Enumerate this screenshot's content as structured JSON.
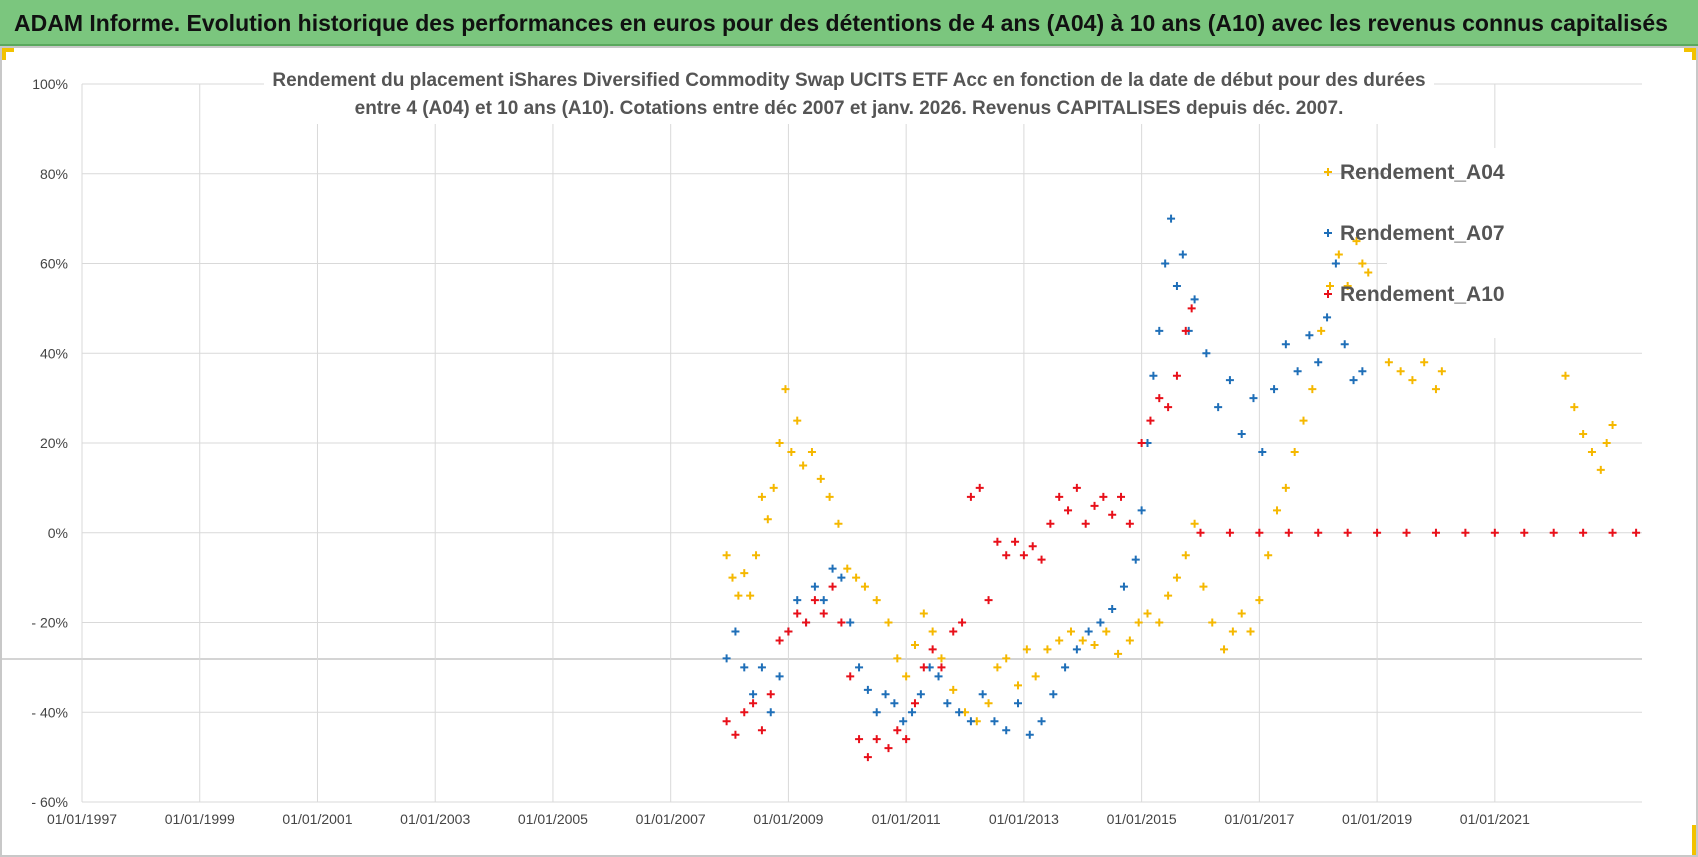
{
  "header": {
    "banner_text": "ADAM Informe. Evolution historique des performances en euros pour des détentions de 4 ans (A04) à 10 ans (A10) avec les revenus connus capitalisés"
  },
  "colors": {
    "banner_bg": "#7bc67e",
    "A04": "#f5b800",
    "A07": "#1f6fb8",
    "A10": "#e8101a",
    "grid": "#d9d9d9"
  },
  "chart_data": {
    "type": "scatter",
    "title_line1": "Rendement du placement iShares Diversified Commodity Swap UCITS ETF Acc en fonction de la date de début pour des durées",
    "title_line2": "entre 4 (A04) et 10 ans (A10). Cotations entre déc 2007 et janv. 2026. Revenus CAPITALISES depuis déc. 2007.",
    "xlabel": "",
    "ylabel": "",
    "x_start_year": 1997,
    "x_end_year": 2023.5,
    "x_ticks": [
      "01/01/1997",
      "01/01/1999",
      "01/01/2001",
      "01/01/2003",
      "01/01/2005",
      "01/01/2007",
      "01/01/2009",
      "01/01/2011",
      "01/01/2013",
      "01/01/2015",
      "01/01/2017",
      "01/01/2019",
      "01/01/2021"
    ],
    "y_ticks": [
      100,
      80,
      60,
      40,
      20,
      0,
      -20,
      -40,
      -60
    ],
    "y_tick_labels": [
      "100%",
      "80%",
      "60%",
      "40%",
      "20%",
      "0%",
      "- 20%",
      "- 40%",
      "- 60%"
    ],
    "ylim": [
      -60,
      100
    ],
    "legend_position": "top-right",
    "marker": "+",
    "series": [
      {
        "name": "Rendement_A04",
        "points": [
          [
            2007.95,
            -5
          ],
          [
            2008.05,
            -10
          ],
          [
            2008.15,
            -14
          ],
          [
            2008.25,
            -9
          ],
          [
            2008.35,
            -14
          ],
          [
            2008.45,
            -5
          ],
          [
            2008.55,
            8
          ],
          [
            2008.65,
            3
          ],
          [
            2008.75,
            10
          ],
          [
            2008.85,
            20
          ],
          [
            2008.95,
            32
          ],
          [
            2009.05,
            18
          ],
          [
            2009.15,
            25
          ],
          [
            2009.25,
            15
          ],
          [
            2009.4,
            18
          ],
          [
            2009.55,
            12
          ],
          [
            2009.7,
            8
          ],
          [
            2009.85,
            2
          ],
          [
            2010.0,
            -8
          ],
          [
            2010.15,
            -10
          ],
          [
            2010.3,
            -12
          ],
          [
            2010.5,
            -15
          ],
          [
            2010.7,
            -20
          ],
          [
            2010.85,
            -28
          ],
          [
            2011.0,
            -32
          ],
          [
            2011.15,
            -25
          ],
          [
            2011.3,
            -18
          ],
          [
            2011.45,
            -22
          ],
          [
            2011.6,
            -28
          ],
          [
            2011.8,
            -35
          ],
          [
            2012.0,
            -40
          ],
          [
            2012.2,
            -42
          ],
          [
            2012.4,
            -38
          ],
          [
            2012.55,
            -30
          ],
          [
            2012.7,
            -28
          ],
          [
            2012.9,
            -34
          ],
          [
            2013.05,
            -26
          ],
          [
            2013.2,
            -32
          ],
          [
            2013.4,
            -26
          ],
          [
            2013.6,
            -24
          ],
          [
            2013.8,
            -22
          ],
          [
            2014.0,
            -24
          ],
          [
            2014.2,
            -25
          ],
          [
            2014.4,
            -22
          ],
          [
            2014.6,
            -27
          ],
          [
            2014.8,
            -24
          ],
          [
            2014.95,
            -20
          ],
          [
            2015.1,
            -18
          ],
          [
            2015.3,
            -20
          ],
          [
            2015.45,
            -14
          ],
          [
            2015.6,
            -10
          ],
          [
            2015.75,
            -5
          ],
          [
            2015.9,
            2
          ],
          [
            2016.05,
            -12
          ],
          [
            2016.2,
            -20
          ],
          [
            2016.4,
            -26
          ],
          [
            2016.55,
            -22
          ],
          [
            2016.7,
            -18
          ],
          [
            2016.85,
            -22
          ],
          [
            2017.0,
            -15
          ],
          [
            2017.15,
            -5
          ],
          [
            2017.3,
            5
          ],
          [
            2017.45,
            10
          ],
          [
            2017.6,
            18
          ],
          [
            2017.75,
            25
          ],
          [
            2017.9,
            32
          ],
          [
            2018.05,
            45
          ],
          [
            2018.2,
            55
          ],
          [
            2018.35,
            62
          ],
          [
            2018.5,
            55
          ],
          [
            2018.65,
            65
          ],
          [
            2018.75,
            60
          ],
          [
            2018.85,
            58
          ],
          [
            2019.2,
            38
          ],
          [
            2019.4,
            36
          ],
          [
            2019.6,
            34
          ],
          [
            2019.8,
            38
          ],
          [
            2020.0,
            32
          ],
          [
            2020.1,
            36
          ],
          [
            2022.2,
            35
          ],
          [
            2022.35,
            28
          ],
          [
            2022.5,
            22
          ],
          [
            2022.65,
            18
          ],
          [
            2022.8,
            14
          ],
          [
            2022.9,
            20
          ],
          [
            2023.0,
            24
          ]
        ]
      },
      {
        "name": "Rendement_A07",
        "points": [
          [
            2007.95,
            -28
          ],
          [
            2008.1,
            -22
          ],
          [
            2008.25,
            -30
          ],
          [
            2008.4,
            -36
          ],
          [
            2008.55,
            -30
          ],
          [
            2008.7,
            -40
          ],
          [
            2008.85,
            -32
          ],
          [
            2009.0,
            -22
          ],
          [
            2009.15,
            -15
          ],
          [
            2009.3,
            -20
          ],
          [
            2009.45,
            -12
          ],
          [
            2009.6,
            -15
          ],
          [
            2009.75,
            -8
          ],
          [
            2009.9,
            -10
          ],
          [
            2010.05,
            -20
          ],
          [
            2010.2,
            -30
          ],
          [
            2010.35,
            -35
          ],
          [
            2010.5,
            -40
          ],
          [
            2010.65,
            -36
          ],
          [
            2010.8,
            -38
          ],
          [
            2010.95,
            -42
          ],
          [
            2011.1,
            -40
          ],
          [
            2011.25,
            -36
          ],
          [
            2011.4,
            -30
          ],
          [
            2011.55,
            -32
          ],
          [
            2011.7,
            -38
          ],
          [
            2011.9,
            -40
          ],
          [
            2012.1,
            -42
          ],
          [
            2012.3,
            -36
          ],
          [
            2012.5,
            -42
          ],
          [
            2012.7,
            -44
          ],
          [
            2012.9,
            -38
          ],
          [
            2013.1,
            -45
          ],
          [
            2013.3,
            -42
          ],
          [
            2013.5,
            -36
          ],
          [
            2013.7,
            -30
          ],
          [
            2013.9,
            -26
          ],
          [
            2014.1,
            -22
          ],
          [
            2014.3,
            -20
          ],
          [
            2014.5,
            -17
          ],
          [
            2014.7,
            -12
          ],
          [
            2014.9,
            -6
          ],
          [
            2015.0,
            5
          ],
          [
            2015.1,
            20
          ],
          [
            2015.2,
            35
          ],
          [
            2015.3,
            45
          ],
          [
            2015.4,
            60
          ],
          [
            2015.5,
            70
          ],
          [
            2015.6,
            55
          ],
          [
            2015.7,
            62
          ],
          [
            2015.8,
            45
          ],
          [
            2015.9,
            52
          ],
          [
            2016.1,
            40
          ],
          [
            2016.3,
            28
          ],
          [
            2016.5,
            34
          ],
          [
            2016.7,
            22
          ],
          [
            2016.9,
            30
          ],
          [
            2017.05,
            18
          ],
          [
            2017.25,
            32
          ],
          [
            2017.45,
            42
          ],
          [
            2017.65,
            36
          ],
          [
            2017.85,
            44
          ],
          [
            2018.0,
            38
          ],
          [
            2018.15,
            48
          ],
          [
            2018.3,
            60
          ],
          [
            2018.45,
            42
          ],
          [
            2018.6,
            34
          ],
          [
            2018.75,
            36
          ]
        ]
      },
      {
        "name": "Rendement_A10",
        "points": [
          [
            2007.95,
            -42
          ],
          [
            2008.1,
            -45
          ],
          [
            2008.25,
            -40
          ],
          [
            2008.4,
            -38
          ],
          [
            2008.55,
            -44
          ],
          [
            2008.7,
            -36
          ],
          [
            2008.85,
            -24
          ],
          [
            2009.0,
            -22
          ],
          [
            2009.15,
            -18
          ],
          [
            2009.3,
            -20
          ],
          [
            2009.45,
            -15
          ],
          [
            2009.6,
            -18
          ],
          [
            2009.75,
            -12
          ],
          [
            2009.9,
            -20
          ],
          [
            2010.05,
            -32
          ],
          [
            2010.2,
            -46
          ],
          [
            2010.35,
            -50
          ],
          [
            2010.5,
            -46
          ],
          [
            2010.7,
            -48
          ],
          [
            2010.85,
            -44
          ],
          [
            2011.0,
            -46
          ],
          [
            2011.15,
            -38
          ],
          [
            2011.3,
            -30
          ],
          [
            2011.45,
            -26
          ],
          [
            2011.6,
            -30
          ],
          [
            2011.8,
            -22
          ],
          [
            2011.95,
            -20
          ],
          [
            2012.1,
            8
          ],
          [
            2012.25,
            10
          ],
          [
            2012.4,
            -15
          ],
          [
            2012.55,
            -2
          ],
          [
            2012.7,
            -5
          ],
          [
            2012.85,
            -2
          ],
          [
            2013.0,
            -5
          ],
          [
            2013.15,
            -3
          ],
          [
            2013.3,
            -6
          ],
          [
            2013.45,
            2
          ],
          [
            2013.6,
            8
          ],
          [
            2013.75,
            5
          ],
          [
            2013.9,
            10
          ],
          [
            2014.05,
            2
          ],
          [
            2014.2,
            6
          ],
          [
            2014.35,
            8
          ],
          [
            2014.5,
            4
          ],
          [
            2014.65,
            8
          ],
          [
            2014.8,
            2
          ],
          [
            2015.0,
            20
          ],
          [
            2015.15,
            25
          ],
          [
            2015.3,
            30
          ],
          [
            2015.45,
            28
          ],
          [
            2015.6,
            35
          ],
          [
            2015.75,
            45
          ],
          [
            2015.85,
            50
          ],
          [
            2016.0,
            0
          ],
          [
            2016.5,
            0
          ],
          [
            2017.0,
            0
          ],
          [
            2017.5,
            0
          ],
          [
            2018.0,
            0
          ],
          [
            2018.5,
            0
          ],
          [
            2019.0,
            0
          ],
          [
            2019.5,
            0
          ],
          [
            2020.0,
            0
          ],
          [
            2020.5,
            0
          ],
          [
            2021.0,
            0
          ],
          [
            2021.5,
            0
          ],
          [
            2022.0,
            0
          ],
          [
            2022.5,
            0
          ],
          [
            2023.0,
            0
          ],
          [
            2023.4,
            0
          ]
        ]
      }
    ]
  }
}
